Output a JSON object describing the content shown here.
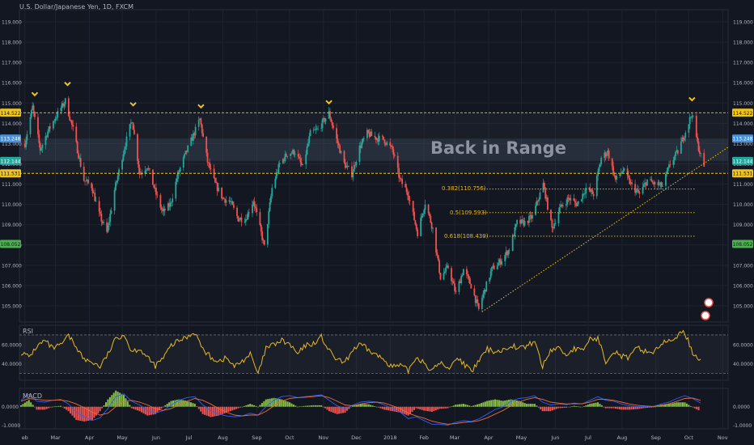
{
  "header": {
    "symbol_title": "U.S. Dollar/Japanese Yen, 1D, FXCM"
  },
  "annotations": {
    "headline": "Back in Range",
    "fib": [
      {
        "label": "0.382(110.756)",
        "value": 110.756
      },
      {
        "label": "0.5(109.593)",
        "value": 109.593
      },
      {
        "label": "0.618(108.430)",
        "value": 108.43
      }
    ]
  },
  "colors": {
    "bull": "#26a69a",
    "bear": "#ef5350",
    "resistance": "#f0c419",
    "rsi_line": "#e8b923",
    "macd_line": "#2962ff",
    "signal_line": "#ef6c3c",
    "hist_pos": "#8bc34a",
    "hist_neg": "#ef5350",
    "badge_blue": "#4a90d9",
    "badge_teal": "#26a69a",
    "badge_yellow": "#f0c419",
    "badge_green": "#4caf50"
  },
  "price_badges": [
    {
      "text": "114.522",
      "color_key": "badge_yellow"
    },
    {
      "text": "113.248",
      "color_key": "badge_blue"
    },
    {
      "text": "112.144",
      "color_key": "badge_teal"
    },
    {
      "text": "111.531",
      "color_key": "badge_yellow"
    },
    {
      "text": "108.052",
      "color_key": "badge_green"
    }
  ],
  "chart_data": [
    {
      "type": "candlestick",
      "title": "U.S. Dollar/Japanese Yen, 1D, FXCM",
      "y_ticks": [
        "119.000",
        "118.000",
        "117.000",
        "116.000",
        "115.000",
        "114.000",
        "113.000",
        "112.000",
        "111.000",
        "110.000",
        "109.000",
        "108.000",
        "107.000",
        "106.000",
        "105.000"
      ],
      "x_ticks": [
        "eb",
        "Mar",
        "Apr",
        "May",
        "Jun",
        "Jul",
        "Aug",
        "Sep",
        "Oct",
        "Nov",
        "Dec",
        "2018",
        "Feb",
        "Mar",
        "Apr",
        "May",
        "Jun",
        "Jul",
        "Aug",
        "Sep",
        "Oct",
        "Nov"
      ],
      "ylim": [
        104.2,
        119.6
      ],
      "horizontal_levels": [
        114.522,
        111.531,
        108.052
      ],
      "range_band": [
        113.248,
        112.144
      ],
      "fib_levels": [
        110.756,
        109.593,
        108.43
      ],
      "trendline": {
        "from": [
          "2018-03-26",
          104.7
        ],
        "to": [
          "2018-10-31",
          112.6
        ]
      },
      "swing_high_markers": [
        "Feb",
        "Mar",
        "May",
        "Jul",
        "Nov",
        "Oct"
      ],
      "close_path": [
        [
          "2017-02-01",
          113.0
        ],
        [
          "2017-02-08",
          114.8
        ],
        [
          "2017-02-15",
          112.7
        ],
        [
          "2017-02-22",
          113.6
        ],
        [
          "2017-03-01",
          114.3
        ],
        [
          "2017-03-10",
          115.1
        ],
        [
          "2017-03-17",
          113.7
        ],
        [
          "2017-03-27",
          111.2
        ],
        [
          "2017-04-03",
          110.9
        ],
        [
          "2017-04-10",
          109.5
        ],
        [
          "2017-04-17",
          108.6
        ],
        [
          "2017-04-24",
          110.7
        ],
        [
          "2017-05-03",
          112.8
        ],
        [
          "2017-05-10",
          114.2
        ],
        [
          "2017-05-17",
          111.5
        ],
        [
          "2017-05-24",
          111.9
        ],
        [
          "2017-06-01",
          110.5
        ],
        [
          "2017-06-07",
          109.6
        ],
        [
          "2017-06-14",
          110.0
        ],
        [
          "2017-06-21",
          111.5
        ],
        [
          "2017-06-28",
          112.5
        ],
        [
          "2017-07-05",
          113.4
        ],
        [
          "2017-07-11",
          114.2
        ],
        [
          "2017-07-18",
          112.1
        ],
        [
          "2017-07-25",
          111.0
        ],
        [
          "2017-08-01",
          110.3
        ],
        [
          "2017-08-08",
          110.1
        ],
        [
          "2017-08-15",
          109.3
        ],
        [
          "2017-08-22",
          109.3
        ],
        [
          "2017-08-29",
          110.2
        ],
        [
          "2017-09-08",
          107.9
        ],
        [
          "2017-09-15",
          110.8
        ],
        [
          "2017-09-22",
          112.0
        ],
        [
          "2017-09-29",
          112.5
        ],
        [
          "2017-10-06",
          112.6
        ],
        [
          "2017-10-13",
          111.8
        ],
        [
          "2017-10-20",
          113.5
        ],
        [
          "2017-10-27",
          113.7
        ],
        [
          "2017-11-06",
          114.5
        ],
        [
          "2017-11-13",
          113.2
        ],
        [
          "2017-11-20",
          112.0
        ],
        [
          "2017-11-27",
          111.5
        ],
        [
          "2017-12-04",
          112.8
        ],
        [
          "2017-12-11",
          113.5
        ],
        [
          "2017-12-18",
          113.3
        ],
        [
          "2017-12-26",
          113.2
        ],
        [
          "2018-01-03",
          112.7
        ],
        [
          "2018-01-10",
          111.2
        ],
        [
          "2018-01-17",
          110.6
        ],
        [
          "2018-01-26",
          108.6
        ],
        [
          "2018-02-02",
          110.1
        ],
        [
          "2018-02-09",
          108.8
        ],
        [
          "2018-02-16",
          106.4
        ],
        [
          "2018-02-23",
          106.9
        ],
        [
          "2018-03-02",
          105.6
        ],
        [
          "2018-03-09",
          106.8
        ],
        [
          "2018-03-16",
          106.0
        ],
        [
          "2018-03-23",
          104.8
        ],
        [
          "2018-03-26",
          105.4
        ],
        [
          "2018-04-04",
          106.8
        ],
        [
          "2018-04-12",
          107.2
        ],
        [
          "2018-04-20",
          107.8
        ],
        [
          "2018-04-27",
          109.1
        ],
        [
          "2018-05-04",
          109.1
        ],
        [
          "2018-05-11",
          109.4
        ],
        [
          "2018-05-21",
          111.0
        ],
        [
          "2018-05-29",
          108.8
        ],
        [
          "2018-06-05",
          109.8
        ],
        [
          "2018-06-13",
          110.3
        ],
        [
          "2018-06-21",
          110.0
        ],
        [
          "2018-06-29",
          110.8
        ],
        [
          "2018-07-06",
          110.5
        ],
        [
          "2018-07-13",
          112.3
        ],
        [
          "2018-07-19",
          112.6
        ],
        [
          "2018-07-26",
          111.2
        ],
        [
          "2018-08-02",
          111.7
        ],
        [
          "2018-08-10",
          110.9
        ],
        [
          "2018-08-17",
          110.5
        ],
        [
          "2018-08-24",
          111.2
        ],
        [
          "2018-08-31",
          111.0
        ],
        [
          "2018-09-07",
          110.9
        ],
        [
          "2018-09-14",
          112.0
        ],
        [
          "2018-09-21",
          112.6
        ],
        [
          "2018-09-28",
          113.6
        ],
        [
          "2018-10-04",
          114.5
        ],
        [
          "2018-10-09",
          113.0
        ],
        [
          "2018-10-15",
          111.8
        ]
      ]
    },
    {
      "type": "line",
      "title": "RSI",
      "y_ticks": [
        "60.0000",
        "40.0000"
      ],
      "ylim": [
        23,
        80
      ],
      "bands": [
        70,
        30
      ],
      "values": [
        52,
        47,
        58,
        64,
        56,
        59,
        69,
        58,
        44,
        42,
        37,
        50,
        66,
        71,
        53,
        56,
        46,
        38,
        46,
        59,
        64,
        68,
        73,
        55,
        47,
        43,
        46,
        37,
        43,
        50,
        29,
        56,
        60,
        64,
        60,
        50,
        59,
        61,
        68,
        53,
        44,
        41,
        55,
        60,
        54,
        49,
        44,
        37,
        38,
        33,
        47,
        42,
        32,
        42,
        34,
        46,
        41,
        31,
        44,
        55,
        53,
        54,
        60,
        56,
        58,
        64,
        37,
        54,
        57,
        49,
        56,
        53,
        66,
        66,
        43,
        54,
        48,
        46,
        57,
        53,
        52,
        61,
        63,
        69,
        73,
        51,
        45
      ]
    },
    {
      "type": "bar",
      "title": "MACD",
      "y_ticks": [
        "0.0000",
        "-1.0000"
      ],
      "ylim": [
        -1.2,
        1.0
      ],
      "series": [
        {
          "name": "MACD",
          "values": [
            0.35,
            0.68,
            0.3,
            0.25,
            0.35,
            0.4,
            0.15,
            -0.3,
            -0.55,
            -0.75,
            -0.6,
            -0.1,
            0.55,
            0.7,
            0.3,
            0.1,
            -0.2,
            -0.35,
            -0.2,
            0.1,
            0.35,
            0.5,
            0.55,
            0.1,
            -0.2,
            -0.4,
            -0.5,
            -0.55,
            -0.5,
            -0.35,
            -0.45,
            0.0,
            0.35,
            0.55,
            0.6,
            0.5,
            0.55,
            0.6,
            0.65,
            0.35,
            0.05,
            -0.1,
            0.1,
            0.25,
            0.3,
            0.25,
            0.1,
            -0.1,
            -0.3,
            -0.65,
            -0.55,
            -0.75,
            -0.95,
            -0.95,
            -1.0,
            -0.85,
            -0.75,
            -0.8,
            -0.65,
            -0.4,
            -0.15,
            0.0,
            0.3,
            0.45,
            0.5,
            0.6,
            0.25,
            0.1,
            0.15,
            0.12,
            0.2,
            0.15,
            0.35,
            0.55,
            0.35,
            0.3,
            0.15,
            0.05,
            0.0,
            0.0,
            0.0,
            0.15,
            0.25,
            0.45,
            0.6,
            0.45,
            0.2
          ]
        },
        {
          "name": "Signal",
          "values": [
            0.3,
            0.45,
            0.4,
            0.35,
            0.35,
            0.37,
            0.3,
            0.15,
            -0.05,
            -0.3,
            -0.45,
            -0.35,
            0.0,
            0.3,
            0.35,
            0.25,
            0.1,
            -0.1,
            -0.2,
            -0.1,
            0.1,
            0.3,
            0.45,
            0.35,
            0.15,
            -0.1,
            -0.3,
            -0.45,
            -0.5,
            -0.45,
            -0.45,
            -0.25,
            0.05,
            0.3,
            0.45,
            0.5,
            0.52,
            0.55,
            0.6,
            0.5,
            0.3,
            0.1,
            0.05,
            0.15,
            0.22,
            0.25,
            0.2,
            0.05,
            -0.1,
            -0.35,
            -0.5,
            -0.62,
            -0.78,
            -0.88,
            -0.95,
            -0.92,
            -0.85,
            -0.82,
            -0.75,
            -0.6,
            -0.4,
            -0.2,
            0.05,
            0.25,
            0.4,
            0.5,
            0.4,
            0.25,
            0.2,
            0.15,
            0.17,
            0.16,
            0.25,
            0.4,
            0.4,
            0.35,
            0.25,
            0.15,
            0.08,
            0.04,
            0.02,
            0.08,
            0.16,
            0.3,
            0.45,
            0.47,
            0.35
          ]
        }
      ]
    }
  ]
}
